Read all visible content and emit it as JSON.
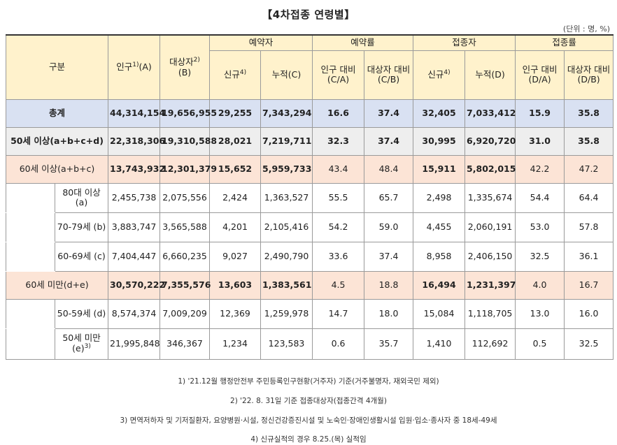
{
  "title": "【4차접종 연령별】",
  "unit": "(단위 : 명, %)",
  "header": {
    "category": "구분",
    "population": "인구",
    "population_sup": "1)",
    "population_suffix": "(A)",
    "target": "대상자",
    "target_sup": "2)",
    "target_suffix": "(B)",
    "reservation": "예약자",
    "reservation_rate": "예약률",
    "vaccinated": "접종자",
    "vaccination_rate": "접종률",
    "new": "신규",
    "new_sup": "4)",
    "cum_c": "누적(C)",
    "cum_d": "누적(D)",
    "pop_ratio_ca": "인구 대비 (C/A)",
    "target_ratio_cb": "대상자 대비 (C/B)",
    "pop_ratio_da": "인구 대비 (D/A)",
    "target_ratio_db": "대상자 대비 (D/B)"
  },
  "rows": {
    "total": {
      "label": "총계",
      "pop": "44,314,154",
      "target": "19,656,955",
      "res_new": "29,255",
      "res_cum": "7,343,294",
      "res_pop_rate": "16.6",
      "res_target_rate": "37.4",
      "vac_new": "32,405",
      "vac_cum": "7,033,412",
      "vac_pop_rate": "15.9",
      "vac_target_rate": "35.8"
    },
    "over50": {
      "label": "50세 이상(a+b+c+d)",
      "pop": "22,318,306",
      "target": "19,310,588",
      "res_new": "28,021",
      "res_cum": "7,219,711",
      "res_pop_rate": "32.3",
      "res_target_rate": "37.4",
      "vac_new": "30,995",
      "vac_cum": "6,920,720",
      "vac_pop_rate": "31.0",
      "vac_target_rate": "35.8"
    },
    "over60": {
      "label": "60세 이상(a+b+c)",
      "pop": "13,743,932",
      "target": "12,301,379",
      "res_new": "15,652",
      "res_cum": "5,959,733",
      "res_pop_rate": "43.4",
      "res_target_rate": "48.4",
      "vac_new": "15,911",
      "vac_cum": "5,802,015",
      "vac_pop_rate": "42.2",
      "vac_target_rate": "47.2"
    },
    "a80": {
      "label": "80대 이상 (a)",
      "pop": "2,455,738",
      "target": "2,075,556",
      "res_new": "2,424",
      "res_cum": "1,363,527",
      "res_pop_rate": "55.5",
      "res_target_rate": "65.7",
      "vac_new": "2,498",
      "vac_cum": "1,335,674",
      "vac_pop_rate": "54.4",
      "vac_target_rate": "64.4"
    },
    "a70": {
      "label": "70-79세 (b)",
      "pop": "3,883,747",
      "target": "3,565,588",
      "res_new": "4,201",
      "res_cum": "2,105,416",
      "res_pop_rate": "54.2",
      "res_target_rate": "59.0",
      "vac_new": "4,455",
      "vac_cum": "2,060,191",
      "vac_pop_rate": "53.0",
      "vac_target_rate": "57.8"
    },
    "a60": {
      "label": "60-69세 (c)",
      "pop": "7,404,447",
      "target": "6,660,235",
      "res_new": "9,027",
      "res_cum": "2,490,790",
      "res_pop_rate": "33.6",
      "res_target_rate": "37.4",
      "vac_new": "8,958",
      "vac_cum": "2,406,150",
      "vac_pop_rate": "32.5",
      "vac_target_rate": "36.1"
    },
    "under60": {
      "label": "60세 미만(d+e)",
      "pop": "30,570,222",
      "target": "7,355,576",
      "res_new": "13,603",
      "res_cum": "1,383,561",
      "res_pop_rate": "4.5",
      "res_target_rate": "18.8",
      "vac_new": "16,494",
      "vac_cum": "1,231,397",
      "vac_pop_rate": "4.0",
      "vac_target_rate": "16.7"
    },
    "a50": {
      "label": "50-59세 (d)",
      "pop": "8,574,374",
      "target": "7,009,209",
      "res_new": "12,369",
      "res_cum": "1,259,978",
      "res_pop_rate": "14.7",
      "res_target_rate": "18.0",
      "vac_new": "15,084",
      "vac_cum": "1,118,705",
      "vac_pop_rate": "13.0",
      "vac_target_rate": "16.0"
    },
    "u50": {
      "label": "50세 미만 (e)",
      "label_sup": "3)",
      "pop": "21,995,848",
      "target": "346,367",
      "res_new": "1,234",
      "res_cum": "123,583",
      "res_pop_rate": "0.6",
      "res_target_rate": "35.7",
      "vac_new": "1,410",
      "vac_cum": "112,692",
      "vac_pop_rate": "0.5",
      "vac_target_rate": "32.5"
    }
  },
  "notes": [
    "1) '21.12월 행정안전부 주민등록인구현황(거주자) 기준(거주불명자, 재외국민 제외)",
    "2) '22. 8. 31일 기준 접종대상자(접종간격 4개월)",
    "3) 면역저하자 및 기저질환자, 요양병원·시설, 정신건강증진시설 및 노숙인·장애인생활시설 입원·입소·종사자 중 18세-49세",
    "4) 신규실적의 경우 8.25.(목) 실적임"
  ],
  "colors": {
    "header_bg": "#fff2cc",
    "total_bg": "#d9e1f2",
    "over50_bg": "#eeeeee",
    "over60_bg": "#fce4d6"
  }
}
